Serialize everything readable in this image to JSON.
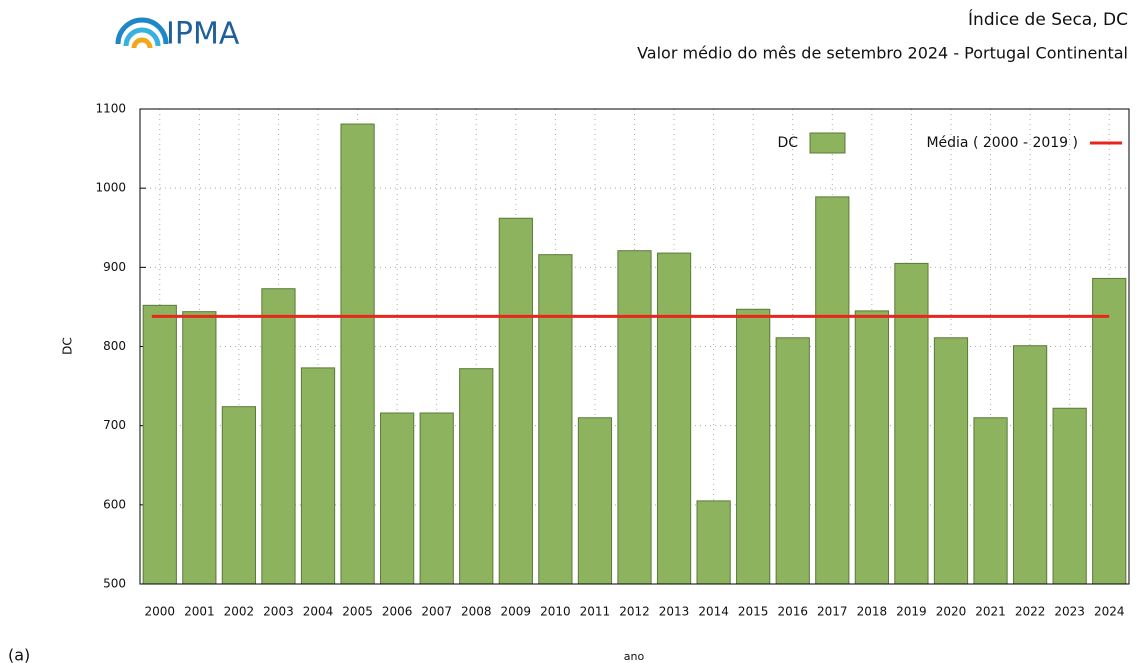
{
  "logo": "IPMA",
  "panel_label": "(a)",
  "chart_data": {
    "type": "bar",
    "title": "Índice de Seca, DC",
    "subtitle": "Valor médio do mês de setembro 2024 - Portugal Continental",
    "x_label": "ano",
    "y_label": "DC",
    "categories": [
      "2000",
      "2001",
      "2002",
      "2003",
      "2004",
      "2005",
      "2006",
      "2007",
      "2008",
      "2009",
      "2010",
      "2011",
      "2012",
      "2013",
      "2014",
      "2015",
      "2016",
      "2017",
      "2018",
      "2019",
      "2020",
      "2021",
      "2022",
      "2023",
      "2024"
    ],
    "series": [
      {
        "name": "DC",
        "color": "#8db35e",
        "values": [
          852,
          844,
          724,
          873,
          773,
          1081,
          716,
          716,
          772,
          962,
          916,
          710,
          921,
          918,
          605,
          847,
          811,
          989,
          845,
          905,
          811,
          710,
          801,
          722,
          886
        ]
      }
    ],
    "reference_line": {
      "name": "Média ( 2000 - 2019 )",
      "color": "#e8261c",
      "value": 838
    },
    "ylim": [
      500,
      1100
    ],
    "yticks": [
      500,
      600,
      700,
      800,
      900,
      1000,
      1100
    ],
    "grid": true,
    "legend": "top-right"
  }
}
